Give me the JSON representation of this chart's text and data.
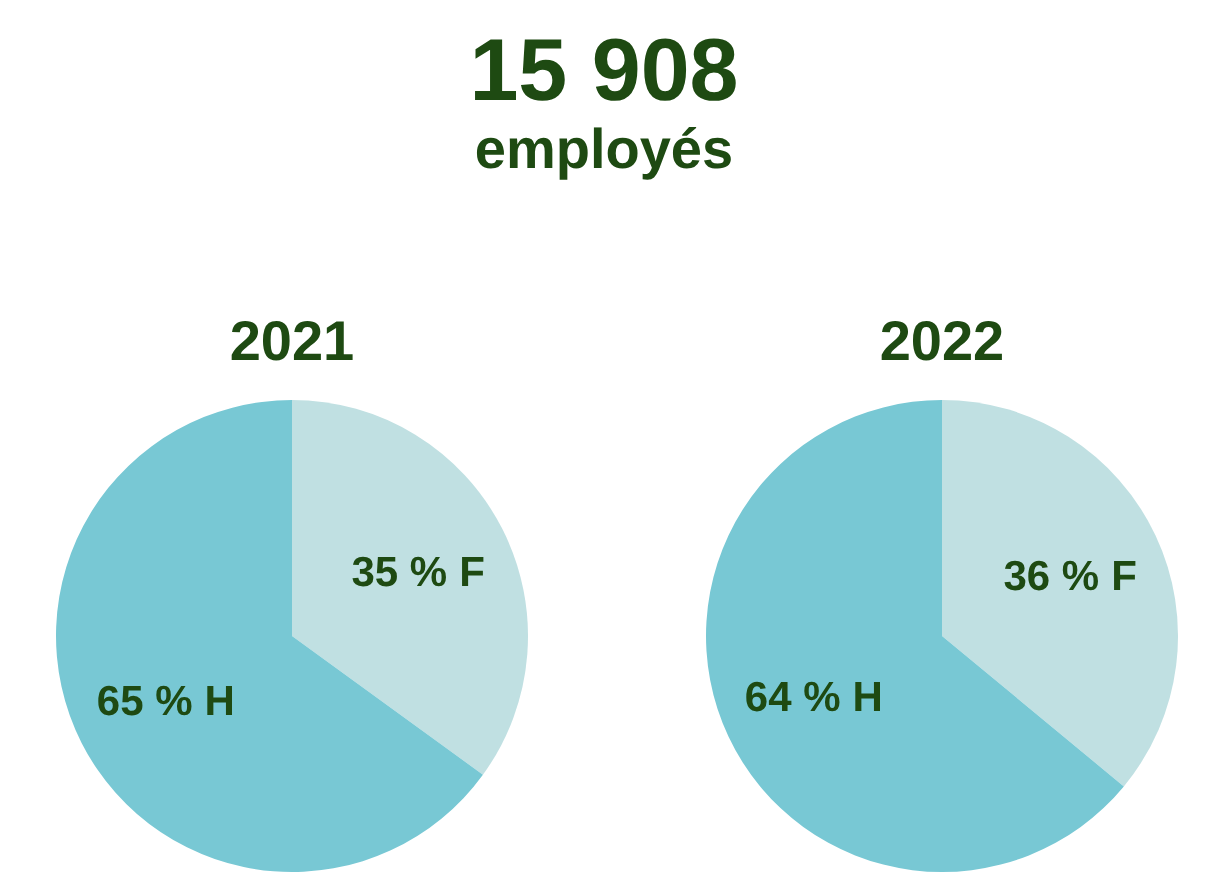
{
  "chart_data": [
    {
      "type": "other",
      "title": "15 908",
      "subtitle": "employés"
    },
    {
      "type": "pie",
      "title": "2021",
      "categories": [
        "F",
        "H"
      ],
      "values": [
        35,
        65
      ],
      "colors": [
        "#c0e0e2",
        "#78c8d4"
      ],
      "value_labels": [
        "35 %",
        "65 %"
      ]
    },
    {
      "type": "pie",
      "title": "2022",
      "categories": [
        "F",
        "H"
      ],
      "values": [
        36,
        64
      ],
      "colors": [
        "#c0e0e2",
        "#78c8d4"
      ],
      "value_labels": [
        "36 %",
        "64 %"
      ]
    }
  ]
}
